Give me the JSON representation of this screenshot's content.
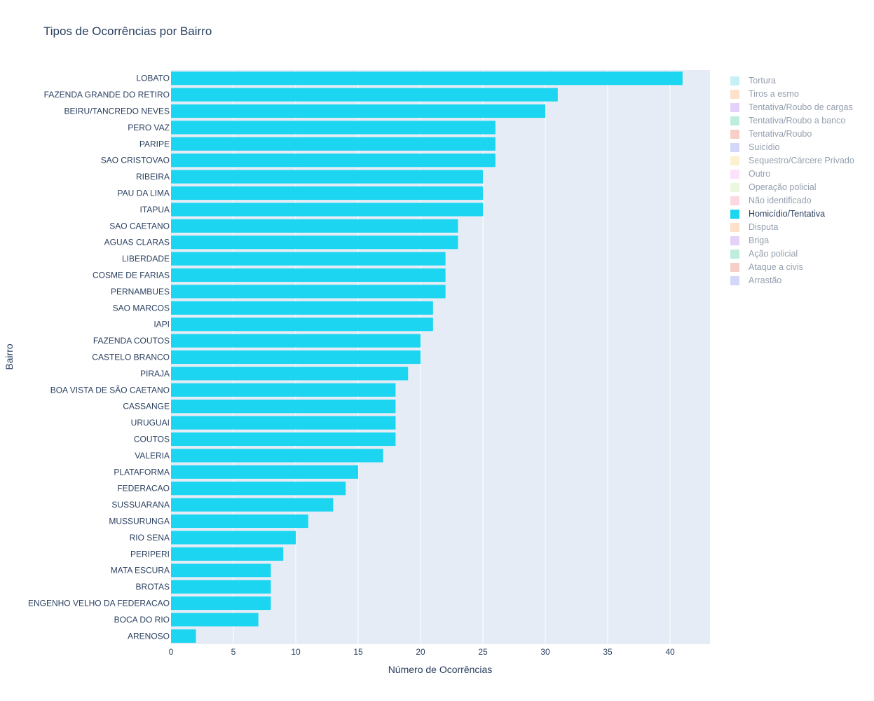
{
  "chart_data": {
    "type": "bar",
    "orientation": "horizontal",
    "title": "Tipos de Ocorrências por Bairro",
    "xlabel": "Número de Ocorrências",
    "ylabel": "Bairro",
    "xlim": [
      0,
      43.2
    ],
    "xticks": [
      "0",
      "5",
      "10",
      "15",
      "20",
      "25",
      "30",
      "35",
      "40"
    ],
    "grid": true,
    "legend_position": "right",
    "plot_background": "#e5ecf6",
    "categories": [
      "LOBATO",
      "FAZENDA GRANDE DO RETIRO",
      "BEIRU/TANCREDO NEVES",
      "PERO VAZ",
      "PARIPE",
      "SAO CRISTOVAO",
      "RIBEIRA",
      "PAU DA LIMA",
      "ITAPUA",
      "SAO CAETANO",
      "AGUAS CLARAS",
      "LIBERDADE",
      "COSME DE FARIAS",
      "PERNAMBUES",
      "SAO MARCOS",
      "IAPI",
      "FAZENDA COUTOS",
      "CASTELO BRANCO",
      "PIRAJA",
      "BOA VISTA DE SÃO CAETANO",
      "CASSANGE",
      "URUGUAI",
      "COUTOS",
      "VALERIA",
      "PLATAFORMA",
      "FEDERACAO",
      "SUSSUARANA",
      "MUSSURUNGA",
      "RIO SENA",
      "PERIPERI",
      "MATA ESCURA",
      "BROTAS",
      "ENGENHO VELHO DA FEDERACAO",
      "BOCA DO RIO",
      "ARENOSO"
    ],
    "series": [
      {
        "name": "Homicídio/Tentativa",
        "color": "#1cd5f0",
        "values": [
          41,
          31,
          30,
          26,
          26,
          26,
          25,
          25,
          25,
          23,
          23,
          22,
          22,
          22,
          21,
          21,
          20,
          20,
          19,
          18,
          18,
          18,
          18,
          17,
          15,
          14,
          13,
          11,
          10,
          9,
          8,
          8,
          8,
          7,
          2
        ]
      }
    ],
    "legend": [
      {
        "name": "Tortura",
        "color": "#8ee3ef",
        "active": false
      },
      {
        "name": "Tiros a esmo",
        "color": "#fcc597",
        "active": false
      },
      {
        "name": "Tentativa/Roubo de cargas",
        "color": "#c8a4f7",
        "active": false
      },
      {
        "name": "Tentativa/Roubo a banco",
        "color": "#7fdcbf",
        "active": false
      },
      {
        "name": "Tentativa/Roubo",
        "color": "#f2a090",
        "active": false
      },
      {
        "name": "Suicídio",
        "color": "#aab0f4",
        "active": false
      },
      {
        "name": "Sequestro/Cárcere Privado",
        "color": "#fde3a0",
        "active": false
      },
      {
        "name": "Outro",
        "color": "#fcc5f7",
        "active": false
      },
      {
        "name": "Operação policial",
        "color": "#dbf0c0",
        "active": false
      },
      {
        "name": "Não identificado",
        "color": "#fbb4c4",
        "active": false
      },
      {
        "name": "Homicídio/Tentativa",
        "color": "#1cd5f0",
        "active": true
      },
      {
        "name": "Disputa",
        "color": "#fcc597",
        "active": false
      },
      {
        "name": "Briga",
        "color": "#c8a4f7",
        "active": false
      },
      {
        "name": "Ação policial",
        "color": "#7fdcbf",
        "active": false
      },
      {
        "name": "Ataque a civis",
        "color": "#f2a090",
        "active": false
      },
      {
        "name": "Arrastão",
        "color": "#aab0f4",
        "active": false
      }
    ]
  }
}
